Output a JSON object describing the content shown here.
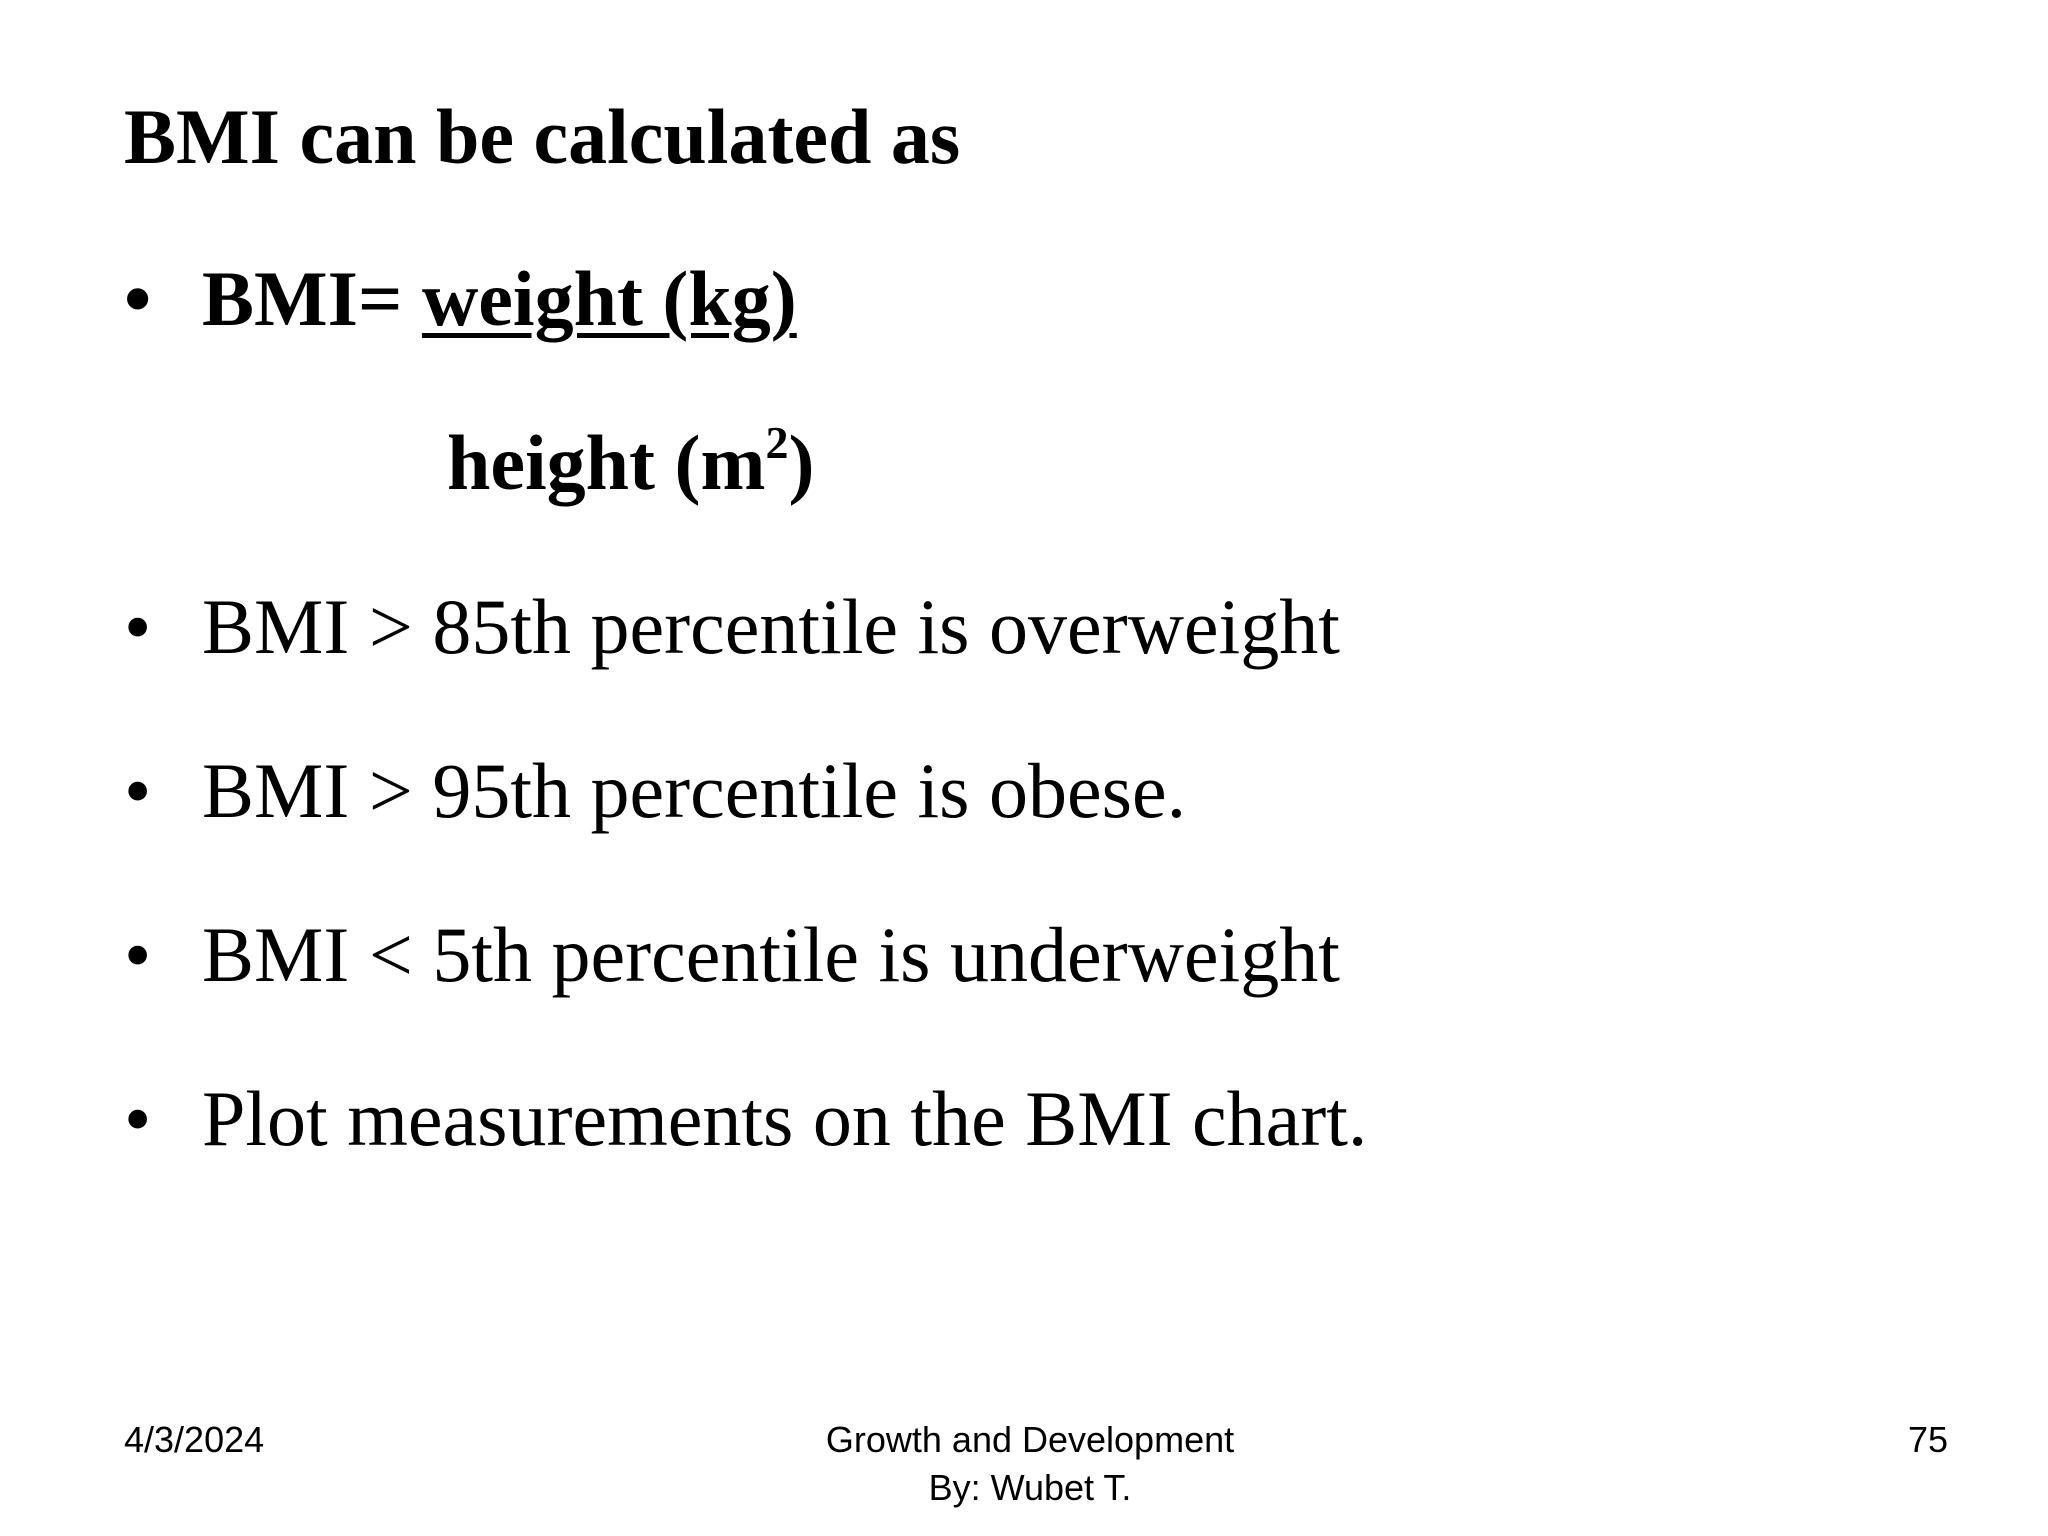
{
  "slide": {
    "title": "BMI can be calculated as",
    "formula": {
      "prefix": "BMI= ",
      "numerator": "weight (kg)",
      "denominator_text": "height (m",
      "denominator_exponent": "2",
      "denominator_close": ")"
    },
    "bullets": [
      "BMI > 85th percentile is overweight",
      "BMI > 95th percentile is obese.",
      "BMI < 5th percentile is underweight",
      "Plot measurements on the BMI chart."
    ],
    "bullet_symbol": "•"
  },
  "footer": {
    "date": "4/3/2024",
    "center_line1": "Growth and Development",
    "center_line2": "By: Wubet T.",
    "page_number": "75"
  }
}
